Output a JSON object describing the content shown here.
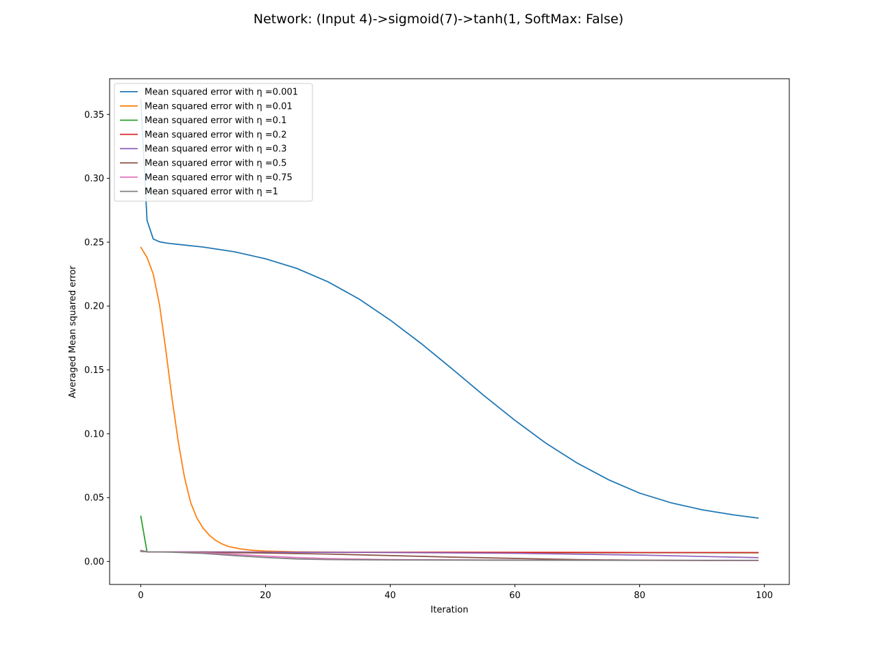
{
  "chart_data": {
    "type": "line",
    "title": "Network: (Input 4)->sigmoid(7)->tanh(1, SoftMax: False)",
    "xlabel": "Iteration",
    "ylabel": "Averaged Mean squared error",
    "xlim": [
      -5,
      104
    ],
    "ylim": [
      -0.018,
      0.378
    ],
    "xticks": [
      0,
      20,
      40,
      60,
      80,
      100
    ],
    "yticks": [
      0.0,
      0.05,
      0.1,
      0.15,
      0.2,
      0.25,
      0.3,
      0.35
    ],
    "xtick_labels": [
      "0",
      "20",
      "40",
      "60",
      "80",
      "100"
    ],
    "ytick_labels": [
      "0.00",
      "0.05",
      "0.10",
      "0.15",
      "0.20",
      "0.25",
      "0.30",
      "0.35"
    ],
    "grid": false,
    "legend_position": "top-left",
    "series": [
      {
        "name": "Mean squared error with η =0.001",
        "color": "#1f77b4",
        "points": [
          [
            0,
            0.362
          ],
          [
            1,
            0.267
          ],
          [
            2,
            0.2525
          ],
          [
            3,
            0.2503
          ],
          [
            4,
            0.2494
          ],
          [
            5,
            0.2488
          ],
          [
            10,
            0.2462
          ],
          [
            15,
            0.2425
          ],
          [
            20,
            0.237
          ],
          [
            25,
            0.2295
          ],
          [
            30,
            0.219
          ],
          [
            35,
            0.2055
          ],
          [
            40,
            0.189
          ],
          [
            45,
            0.1705
          ],
          [
            50,
            0.1505
          ],
          [
            55,
            0.13
          ],
          [
            60,
            0.1105
          ],
          [
            65,
            0.0925
          ],
          [
            70,
            0.077
          ],
          [
            75,
            0.064
          ],
          [
            80,
            0.0535
          ],
          [
            85,
            0.046
          ],
          [
            90,
            0.0405
          ],
          [
            95,
            0.0365
          ],
          [
            99,
            0.034
          ]
        ]
      },
      {
        "name": "Mean squared error with η =0.01",
        "color": "#ff7f0e",
        "points": [
          [
            0,
            0.246
          ],
          [
            1,
            0.238
          ],
          [
            2,
            0.225
          ],
          [
            3,
            0.201
          ],
          [
            4,
            0.166
          ],
          [
            5,
            0.128
          ],
          [
            6,
            0.094
          ],
          [
            7,
            0.066
          ],
          [
            8,
            0.046
          ],
          [
            9,
            0.034
          ],
          [
            10,
            0.026
          ],
          [
            11,
            0.0205
          ],
          [
            12,
            0.0165
          ],
          [
            13,
            0.0138
          ],
          [
            14,
            0.0118
          ],
          [
            16,
            0.0098
          ],
          [
            18,
            0.0087
          ],
          [
            20,
            0.0081
          ],
          [
            25,
            0.0075
          ],
          [
            30,
            0.0073
          ],
          [
            40,
            0.0072
          ],
          [
            60,
            0.0071
          ],
          [
            80,
            0.007
          ],
          [
            99,
            0.007
          ]
        ]
      },
      {
        "name": "Mean squared error with η =0.1",
        "color": "#2ca02c",
        "points": [
          [
            0,
            0.0355
          ],
          [
            1,
            0.0075
          ],
          [
            5,
            0.0074
          ],
          [
            20,
            0.0072
          ],
          [
            40,
            0.0071
          ],
          [
            60,
            0.007
          ],
          [
            80,
            0.0069
          ],
          [
            99,
            0.0068
          ]
        ]
      },
      {
        "name": "Mean squared error with η =0.2",
        "color": "#d62728",
        "points": [
          [
            0,
            0.0083
          ],
          [
            1,
            0.0075
          ],
          [
            5,
            0.0074
          ],
          [
            20,
            0.0073
          ],
          [
            40,
            0.0072
          ],
          [
            60,
            0.0071
          ],
          [
            80,
            0.007
          ],
          [
            99,
            0.007
          ]
        ]
      },
      {
        "name": "Mean squared error with η =0.3",
        "color": "#9467bd",
        "points": [
          [
            0,
            0.0078
          ],
          [
            1,
            0.0076
          ],
          [
            5,
            0.0075
          ],
          [
            20,
            0.0073
          ],
          [
            40,
            0.007
          ],
          [
            60,
            0.0064
          ],
          [
            80,
            0.005
          ],
          [
            99,
            0.003
          ]
        ]
      },
      {
        "name": "Mean squared error with η =0.5",
        "color": "#8c564b",
        "points": [
          [
            0,
            0.0086
          ],
          [
            1,
            0.0076
          ],
          [
            5,
            0.0074
          ],
          [
            10,
            0.0071
          ],
          [
            20,
            0.0066
          ],
          [
            30,
            0.0058
          ],
          [
            40,
            0.0046
          ],
          [
            50,
            0.0034
          ],
          [
            60,
            0.0024
          ],
          [
            70,
            0.0015
          ],
          [
            80,
            0.001
          ],
          [
            90,
            0.0008
          ],
          [
            99,
            0.0008
          ]
        ]
      },
      {
        "name": "Mean squared error with η =0.75",
        "color": "#e377c2",
        "points": [
          [
            0,
            0.0082
          ],
          [
            1,
            0.0076
          ],
          [
            5,
            0.0074
          ],
          [
            10,
            0.0068
          ],
          [
            15,
            0.0056
          ],
          [
            20,
            0.0042
          ],
          [
            25,
            0.0031
          ],
          [
            30,
            0.0023
          ],
          [
            40,
            0.0015
          ],
          [
            60,
            0.0011
          ],
          [
            80,
            0.0009
          ],
          [
            99,
            0.0008
          ]
        ]
      },
      {
        "name": "Mean squared error with η =1",
        "color": "#7f7f7f",
        "points": [
          [
            0,
            0.008
          ],
          [
            1,
            0.0076
          ],
          [
            5,
            0.0073
          ],
          [
            10,
            0.0063
          ],
          [
            15,
            0.0046
          ],
          [
            20,
            0.0031
          ],
          [
            25,
            0.002
          ],
          [
            30,
            0.0015
          ],
          [
            40,
            0.0012
          ],
          [
            60,
            0.001
          ],
          [
            80,
            0.0009
          ],
          [
            99,
            0.0009
          ]
        ]
      }
    ]
  }
}
